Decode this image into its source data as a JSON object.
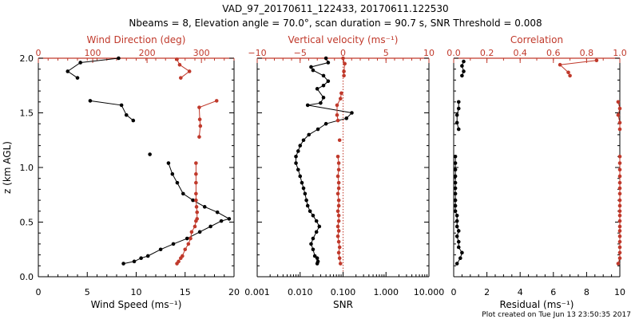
{
  "title_line1": "VAD_97_20170611_122433, 20170611.122530",
  "title_line2": "Nbeams = 8, Elevation angle = 70.0°, scan duration = 90.7 s, SNR Threshold = 0.008",
  "footer": "Plot created on Tue Jun 13 23:50:35 2017",
  "colors": {
    "black": "#000000",
    "red": "#c0392b"
  },
  "chart_data": [
    {
      "type": "line",
      "ylabel": "z (km AGL)",
      "ylim": [
        0,
        2
      ],
      "y_ticks": [
        "0.0",
        "0.5",
        "1.0",
        "1.5",
        "2.0"
      ],
      "bottom_axis": {
        "label": "Wind Speed (ms⁻¹)",
        "xlim": [
          0,
          20
        ],
        "ticks": [
          "0",
          "5",
          "10",
          "15",
          "20"
        ]
      },
      "top_axis": {
        "label": "Wind Direction (deg)",
        "xlim": [
          0,
          360
        ],
        "ticks": [
          "0",
          "100",
          "200",
          "300"
        ]
      },
      "series": [
        {
          "color": "#000000",
          "axis": "bottom",
          "x": [
            8.7,
            9.8,
            10.5,
            11.2,
            12.5,
            13.8,
            15.2,
            16.5,
            17.6,
            18.7,
            19.5,
            18.3,
            17.0,
            15.8,
            14.8,
            14.2,
            13.7,
            13.3
          ],
          "y": [
            0.12,
            0.14,
            0.17,
            0.19,
            0.25,
            0.3,
            0.35,
            0.41,
            0.46,
            0.51,
            0.53,
            0.59,
            0.64,
            0.7,
            0.76,
            0.86,
            0.94,
            1.04
          ]
        },
        {
          "color": "#000000",
          "axis": "bottom",
          "x": [
            11.4
          ],
          "y": [
            1.12
          ]
        },
        {
          "color": "#000000",
          "axis": "bottom",
          "x": [
            5.3,
            8.5,
            9.0,
            9.7
          ],
          "y": [
            1.61,
            1.57,
            1.48,
            1.43
          ]
        },
        {
          "color": "#000000",
          "axis": "bottom",
          "x": [
            8.2,
            4.3,
            3.0,
            4.0
          ],
          "y": [
            2.0,
            1.96,
            1.88,
            1.82
          ]
        },
        {
          "color": "#c0392b",
          "axis": "top",
          "x": [
            255,
            258,
            262,
            265,
            270,
            276,
            280,
            282,
            288,
            290,
            292,
            292,
            291,
            290,
            290,
            290,
            290,
            290
          ],
          "y": [
            0.12,
            0.14,
            0.17,
            0.19,
            0.25,
            0.3,
            0.35,
            0.41,
            0.46,
            0.51,
            0.53,
            0.59,
            0.64,
            0.7,
            0.76,
            0.86,
            0.94,
            1.04
          ]
        },
        {
          "color": "#c0392b",
          "axis": "top",
          "x": [
            296,
            298,
            297,
            296,
            328
          ],
          "y": [
            1.28,
            1.38,
            1.44,
            1.55,
            1.61
          ]
        },
        {
          "color": "#c0392b",
          "axis": "top",
          "x": [
            255,
            260,
            278,
            262
          ],
          "y": [
            1.99,
            1.94,
            1.88,
            1.82
          ]
        }
      ]
    },
    {
      "type": "line",
      "bottom_axis": {
        "label": "SNR",
        "scale": "log",
        "xlim": [
          0.001,
          10
        ],
        "ticks": [
          "0.001",
          "0.010",
          "0.100",
          "1.000",
          "10.000"
        ]
      },
      "top_axis": {
        "label": "Vertical velocity (ms⁻¹)",
        "xlim": [
          -10,
          10
        ],
        "ticks": [
          "−10",
          "−5",
          "0",
          "5",
          "10"
        ],
        "reference_line": 0
      },
      "series": [
        {
          "color": "#000000",
          "axis": "bottom",
          "x": [
            0.025,
            0.026,
            0.025,
            0.022,
            0.02,
            0.018,
            0.02,
            0.024,
            0.028,
            0.024,
            0.02,
            0.017,
            0.015,
            0.014,
            0.013,
            0.012,
            0.011,
            0.01,
            0.009,
            0.008,
            0.008,
            0.009,
            0.01,
            0.012,
            0.016,
            0.026,
            0.04,
            0.12,
            0.16,
            0.015,
            0.03,
            0.035,
            0.025,
            0.035,
            0.045,
            0.035,
            0.02,
            0.018,
            0.045,
            0.04
          ],
          "y": [
            0.12,
            0.14,
            0.17,
            0.19,
            0.25,
            0.3,
            0.35,
            0.41,
            0.46,
            0.51,
            0.56,
            0.6,
            0.65,
            0.7,
            0.76,
            0.81,
            0.86,
            0.92,
            0.98,
            1.04,
            1.1,
            1.15,
            1.2,
            1.25,
            1.3,
            1.35,
            1.4,
            1.45,
            1.5,
            1.57,
            1.59,
            1.64,
            1.72,
            1.75,
            1.79,
            1.84,
            1.89,
            1.92,
            1.96,
            2.0
          ]
        },
        {
          "color": "#c0392b",
          "axis": "top",
          "x": [
            -0.3,
            -0.4,
            -0.5,
            -0.4,
            -0.5,
            -0.6,
            -0.5,
            -0.6,
            -0.5,
            -0.5,
            -0.6,
            -0.5,
            -0.5,
            -0.6,
            -0.5,
            -0.5,
            -0.6,
            -0.5,
            -0.5,
            -0.6
          ],
          "y": [
            0.12,
            0.17,
            0.22,
            0.27,
            0.32,
            0.37,
            0.42,
            0.46,
            0.51,
            0.56,
            0.6,
            0.65,
            0.7,
            0.76,
            0.81,
            0.86,
            0.92,
            0.98,
            1.04,
            1.1
          ]
        },
        {
          "color": "#c0392b",
          "axis": "top",
          "x": [
            -0.4
          ],
          "y": [
            1.25
          ]
        },
        {
          "color": "#c0392b",
          "axis": "top",
          "x": [
            -0.6,
            -0.7,
            -0.7,
            -0.3,
            -0.2
          ],
          "y": [
            1.43,
            1.48,
            1.57,
            1.63,
            1.68
          ]
        },
        {
          "color": "#c0392b",
          "axis": "top",
          "x": [
            0.1,
            0.1,
            0.2,
            0.0
          ],
          "y": [
            1.84,
            1.88,
            1.95,
            2.0
          ]
        }
      ]
    },
    {
      "type": "line",
      "bottom_axis": {
        "label": "Residual (ms⁻¹)",
        "xlim": [
          0,
          10
        ],
        "ticks": [
          "0",
          "2",
          "4",
          "6",
          "8",
          "10"
        ]
      },
      "top_axis": {
        "label": "Correlation",
        "xlim": [
          0,
          1
        ],
        "ticks": [
          "0.0",
          "0.2",
          "0.4",
          "0.6",
          "0.8",
          "1.0"
        ]
      },
      "series": [
        {
          "color": "#000000",
          "axis": "bottom",
          "x": [
            0.2,
            0.4,
            0.5,
            0.3,
            0.3,
            0.2,
            0.3,
            0.2,
            0.2,
            0.2,
            0.1,
            0.1,
            0.1,
            0.1,
            0.1,
            0.1,
            0.1,
            0.1,
            0.1,
            0.1
          ],
          "y": [
            0.12,
            0.17,
            0.22,
            0.27,
            0.32,
            0.37,
            0.42,
            0.46,
            0.51,
            0.56,
            0.6,
            0.65,
            0.7,
            0.76,
            0.81,
            0.86,
            0.92,
            0.98,
            1.04,
            1.1
          ]
        },
        {
          "color": "#000000",
          "axis": "bottom",
          "x": [
            0.3,
            0.2,
            0.2,
            0.3,
            0.3
          ],
          "y": [
            1.35,
            1.41,
            1.48,
            1.54,
            1.6
          ]
        },
        {
          "color": "#000000",
          "axis": "bottom",
          "x": [
            0.5,
            0.6,
            0.5,
            0.6
          ],
          "y": [
            1.84,
            1.88,
            1.93,
            1.97
          ]
        },
        {
          "color": "#c0392b",
          "axis": "top",
          "x": [
            0.99,
            1.0,
            1.0,
            1.0,
            1.0,
            1.0,
            1.0,
            1.0,
            1.0,
            1.0,
            1.0,
            1.0,
            1.0,
            1.0,
            1.0,
            1.0,
            1.0,
            1.0,
            1.0,
            1.0
          ],
          "y": [
            0.12,
            0.17,
            0.22,
            0.27,
            0.32,
            0.37,
            0.42,
            0.46,
            0.51,
            0.56,
            0.6,
            0.65,
            0.7,
            0.76,
            0.81,
            0.86,
            0.92,
            0.98,
            1.04,
            1.1
          ]
        },
        {
          "color": "#c0392b",
          "axis": "top",
          "x": [
            1.0,
            1.0,
            0.99,
            1.0,
            0.99
          ],
          "y": [
            1.35,
            1.41,
            1.48,
            1.54,
            1.6
          ]
        },
        {
          "color": "#c0392b",
          "axis": "top",
          "x": [
            0.86,
            0.64,
            0.69,
            0.7
          ],
          "y": [
            1.98,
            1.94,
            1.87,
            1.84
          ]
        }
      ]
    }
  ]
}
